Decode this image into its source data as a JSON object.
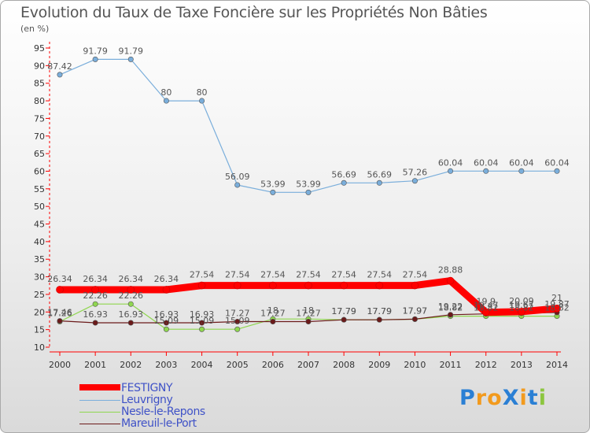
{
  "title": "Evolution du Taux de Taxe Foncière sur les Propriétés Non Bâties",
  "subtitle": "(en %)",
  "chart_data": {
    "type": "line",
    "title": "Evolution du Taux de Taxe Foncière sur les Propriétés Non Bâties",
    "ylabel": "(en %)",
    "xlabel": "",
    "ylim": [
      10,
      95
    ],
    "yticks": [
      10,
      15,
      20,
      25,
      30,
      35,
      40,
      45,
      50,
      55,
      60,
      65,
      70,
      75,
      80,
      85,
      90,
      95
    ],
    "x": [
      "2000",
      "2001",
      "2002",
      "2003",
      "2004",
      "2005",
      "2006",
      "2007",
      "2008",
      "2009",
      "2010",
      "2011",
      "2012",
      "2013",
      "2014"
    ],
    "grid": false,
    "series": [
      {
        "name": "Nesle-le-Repons",
        "color": "#8fd64f",
        "values": [
          17.26,
          22.26,
          22.26,
          15.09,
          15.09,
          15.09,
          18,
          18,
          17.79,
          17.79,
          17.97,
          18.82,
          18.82,
          18.82,
          18.82
        ],
        "labels": [
          "17.26",
          "22.26",
          "22.26",
          "15.09",
          "15.09",
          "15.09",
          "18",
          "18",
          "17.79",
          "17.79",
          "17.97",
          "18.82",
          "18.82",
          "18.82",
          "18.82"
        ]
      },
      {
        "name": "Mareuil-le-Port",
        "color": "#6b1a1a",
        "values": [
          17.46,
          16.93,
          16.93,
          16.93,
          16.93,
          17.27,
          17.27,
          17.27,
          17.79,
          17.79,
          17.97,
          19.22,
          19.47,
          19.67,
          19.87
        ],
        "labels": [
          "17.46",
          "16.93",
          "16.93",
          "16.93",
          "16.93",
          "17.27",
          "17.27",
          "17.27",
          "17.79",
          "17.79",
          "17.97",
          "19.22",
          "19.47",
          "19.67",
          "19.87"
        ]
      },
      {
        "name": "Leuvrigny",
        "color": "#7aaedb",
        "values": [
          87.42,
          91.79,
          91.79,
          80,
          80,
          56.09,
          53.99,
          53.99,
          56.69,
          56.69,
          57.26,
          60.04,
          60.04,
          60.04,
          60.04
        ],
        "labels": [
          "87.42",
          "91.79",
          "91.79",
          "80",
          "80",
          "56.09",
          "53.99",
          "53.99",
          "56.69",
          "56.69",
          "57.26",
          "60.04",
          "60.04",
          "60.04",
          "60.04"
        ]
      },
      {
        "name": "FESTIGNY",
        "color": "#ff0000",
        "values": [
          26.34,
          26.34,
          26.34,
          26.34,
          27.54,
          27.54,
          27.54,
          27.54,
          27.54,
          27.54,
          27.54,
          28.88,
          19.9,
          20.09,
          21
        ],
        "labels": [
          "26.34",
          "26.34",
          "26.34",
          "26.34",
          "27.54",
          "27.54",
          "27.54",
          "27.54",
          "27.54",
          "27.54",
          "27.54",
          "28.88",
          "19.9",
          "20.09",
          "21"
        ]
      }
    ]
  },
  "legend": [
    {
      "label": "FESTIGNY",
      "color": "#ff0000"
    },
    {
      "label": "Leuvrigny",
      "color": "#7aaedb"
    },
    {
      "label": "Nesle-le-Repons",
      "color": "#8fd64f"
    },
    {
      "label": "Mareuil-le-Port",
      "color": "#6b1a1a"
    }
  ],
  "logo": {
    "text": "ProXiti",
    "colors": [
      "#2a7fd4",
      "#f29a1d",
      "#f29a1d",
      "#2a7fd4",
      "#f29a1d",
      "#2a7fd4",
      "#8cc63f"
    ]
  }
}
